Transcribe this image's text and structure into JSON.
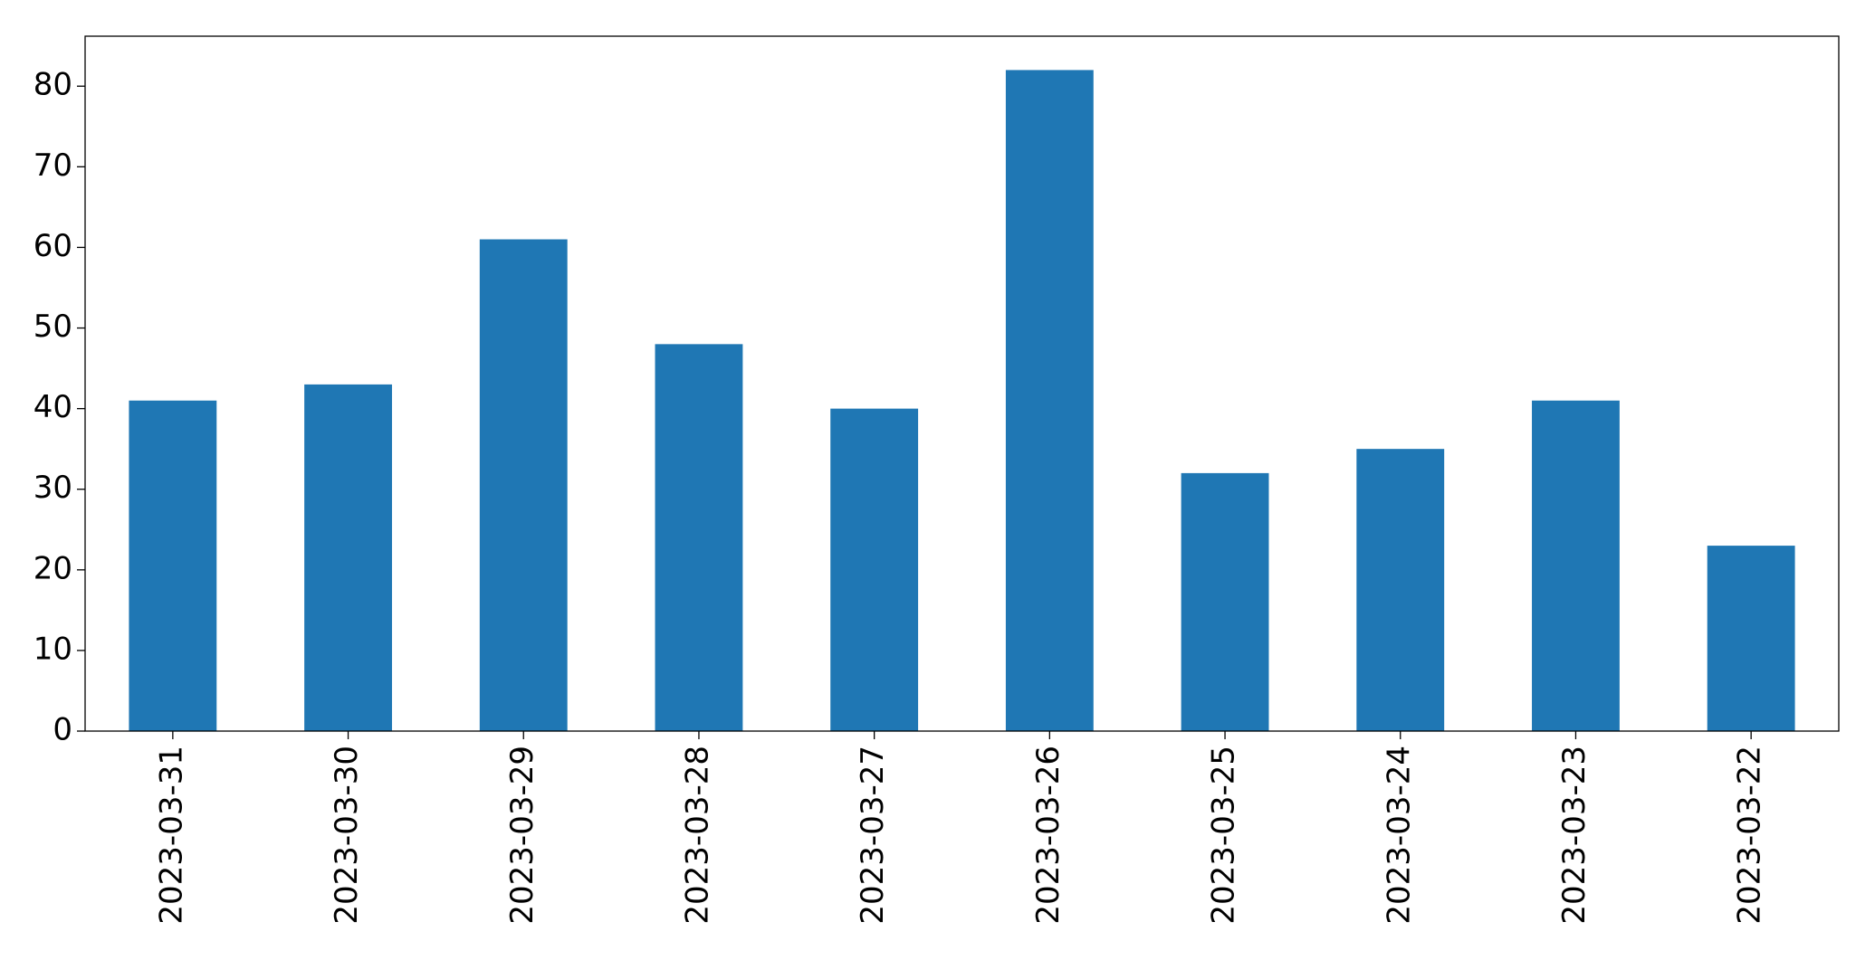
{
  "chart_data": {
    "type": "bar",
    "categories": [
      "2023-03-31",
      "2023-03-30",
      "2023-03-29",
      "2023-03-28",
      "2023-03-27",
      "2023-03-26",
      "2023-03-25",
      "2023-03-24",
      "2023-03-23",
      "2023-03-22"
    ],
    "values": [
      41,
      43,
      61,
      48,
      40,
      82,
      32,
      35,
      41,
      23
    ],
    "color": "#1f77b4",
    "ylim": [
      0,
      86.2
    ],
    "yticks": [
      0,
      10,
      20,
      30,
      40,
      50,
      60,
      70,
      80
    ],
    "grid": false
  }
}
